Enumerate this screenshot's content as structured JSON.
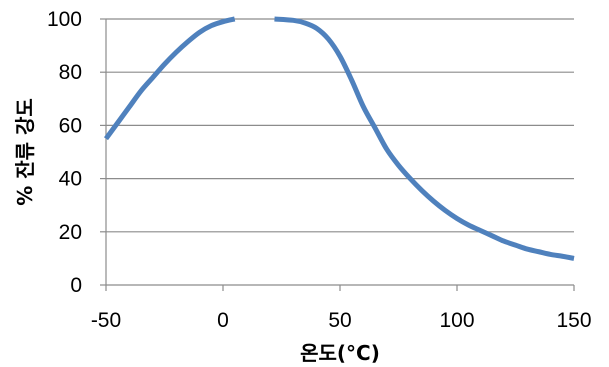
{
  "chart_data": {
    "type": "line",
    "title": "",
    "xlabel": "온도(°C)",
    "ylabel": "% 잔류 강도",
    "xlim": [
      -50,
      150
    ],
    "ylim": [
      0,
      100
    ],
    "x_ticks": [
      -50,
      0,
      50,
      100,
      150
    ],
    "y_ticks": [
      0,
      20,
      40,
      60,
      80,
      100
    ],
    "grid": "horizontal",
    "legend": "none",
    "colors": {
      "line": "#4f81bd",
      "grid": "#8c8c8c",
      "axis": "#8c8c8c"
    },
    "series": [
      {
        "segments": [
          [
            [
              -50,
              55
            ],
            [
              -45,
              61
            ],
            [
              -40,
              67
            ],
            [
              -35,
              73
            ],
            [
              -30,
              78
            ],
            [
              -25,
              83
            ],
            [
              -20,
              87.5
            ],
            [
              -15,
              91.5
            ],
            [
              -10,
              95
            ],
            [
              -5,
              97.5
            ],
            [
              0,
              99
            ],
            [
              5,
              100
            ]
          ],
          [
            [
              22,
              100
            ],
            [
              30,
              99.5
            ],
            [
              35,
              98.5
            ],
            [
              40,
              96.5
            ],
            [
              45,
              92.5
            ],
            [
              50,
              86
            ],
            [
              55,
              77
            ],
            [
              60,
              67
            ],
            [
              65,
              59
            ],
            [
              70,
              51
            ],
            [
              75,
              45
            ],
            [
              80,
              40
            ],
            [
              85,
              35.5
            ],
            [
              90,
              31.5
            ],
            [
              95,
              28
            ],
            [
              100,
              25
            ],
            [
              105,
              22.5
            ],
            [
              110,
              20.5
            ],
            [
              115,
              18.5
            ],
            [
              120,
              16.5
            ],
            [
              125,
              15
            ],
            [
              130,
              13.5
            ],
            [
              135,
              12.5
            ],
            [
              140,
              11.5
            ],
            [
              145,
              10.8
            ],
            [
              150,
              10
            ]
          ]
        ]
      }
    ]
  }
}
